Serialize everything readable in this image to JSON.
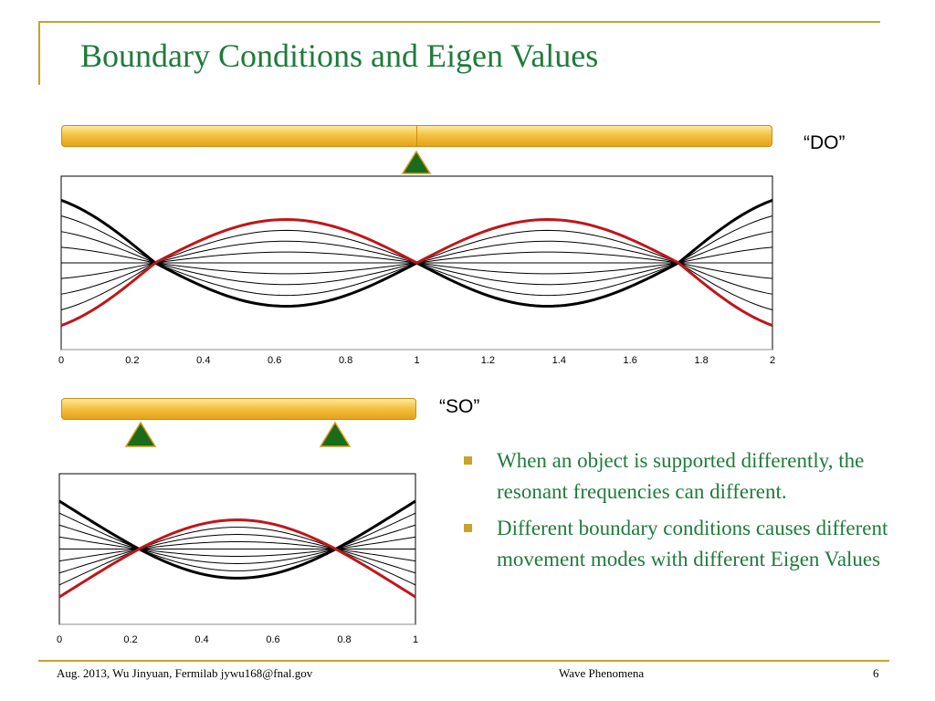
{
  "slide": {
    "title": "Boundary Conditions and Eigen Values",
    "label_do": "“DO”",
    "label_so": "“SO”",
    "bullets": [
      "When an object is supported differently, the resonant frequencies can different.",
      "Different boundary conditions causes different movement modes with different Eigen Values"
    ],
    "footer": {
      "left": "Aug. 2013, Wu Jinyuan, Fermilab jywu168@fnal.gov",
      "center": "Wave Phenomena",
      "page": "6"
    }
  },
  "colors": {
    "title": "#1e7b3a",
    "accent_gold": "#c9a227",
    "support_green": "#1a6b1a",
    "red_curve": "#c0161a",
    "black_curve": "#000000"
  },
  "chart_data": [
    {
      "type": "line",
      "title": "",
      "xlabel": "",
      "ylabel": "",
      "xlim": [
        0,
        2
      ],
      "ylim": [
        -1.1,
        1.1
      ],
      "x_ticks": [
        "0",
        "0.2",
        "0.4",
        "0.6",
        "0.8",
        "1",
        "1.2",
        "1.4",
        "1.6",
        "1.8",
        "2"
      ],
      "x_tick_values": [
        0,
        0.2,
        0.4,
        0.6,
        0.8,
        1,
        1.2,
        1.4,
        1.6,
        1.8,
        2
      ],
      "grid": false,
      "nodes_x": [
        0.264,
        1.0,
        1.736
      ],
      "amplitude_levels": [
        1.0,
        0.75,
        0.5,
        0.25,
        0,
        -0.25,
        -0.5,
        -0.75,
        -1.0
      ],
      "highlighted_level": -1.0,
      "mode_shape": "free-supported beam with center support, symmetric mode"
    },
    {
      "type": "line",
      "title": "",
      "xlabel": "",
      "ylabel": "",
      "xlim": [
        0,
        1
      ],
      "ylim": [
        -1.1,
        1.1
      ],
      "x_ticks": [
        "0",
        "0.2",
        "0.4",
        "0.6",
        "0.8",
        "1"
      ],
      "x_tick_values": [
        0,
        0.2,
        0.4,
        0.6,
        0.8,
        1
      ],
      "grid": false,
      "nodes_x": [
        0.224,
        0.776
      ],
      "amplitude_levels": [
        1.0,
        0.75,
        0.5,
        0.25,
        0,
        -0.25,
        -0.5,
        -0.75,
        -1.0
      ],
      "highlighted_level": -1.0,
      "mode_shape": "free-free beam first mode"
    }
  ]
}
